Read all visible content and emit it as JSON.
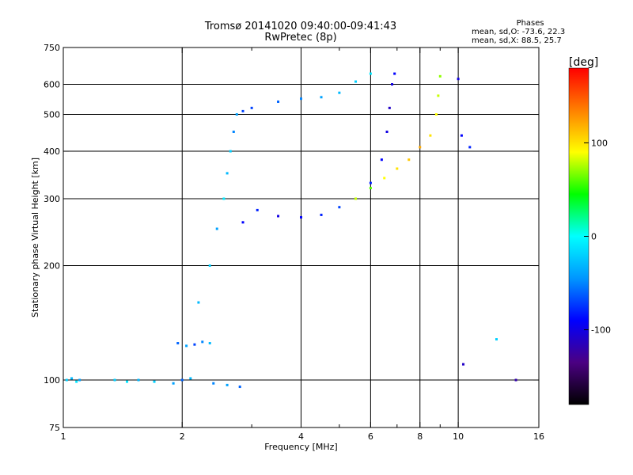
{
  "header": {
    "title_line1": "Tromsø 20141020 09:40:00-09:41:43",
    "title_line2": "RwPretec (8p)"
  },
  "phases": {
    "title": "Phases",
    "line_o": "mean, sd,O: -73.6, 22.3",
    "line_x": "mean, sd,X:  88.5, 25.7"
  },
  "chart_data": {
    "type": "scatter",
    "title": "Tromsø 20141020 09:40:00-09:41:43",
    "subtitle": "RwPretec (8p)",
    "xlabel": "Frequency [MHz]",
    "ylabel": "Stationary phase Virtual Height [km]",
    "x_scale": "log",
    "y_scale": "log",
    "xlim": [
      1,
      16
    ],
    "ylim": [
      75,
      750
    ],
    "x_ticks": [
      1,
      2,
      4,
      6,
      8,
      10,
      16
    ],
    "x_minor_ticks": [
      3,
      5,
      7,
      9
    ],
    "y_ticks": [
      75,
      100,
      200,
      300,
      400,
      500,
      600,
      750
    ],
    "grid_x": [
      2,
      4,
      6,
      8,
      10
    ],
    "grid_y": [
      100,
      200,
      300,
      400,
      500,
      600
    ],
    "colorbar": {
      "label": "[deg]",
      "min": -180,
      "max": 180,
      "ticks": [
        100,
        0,
        -100
      ],
      "colors": [
        "#000000",
        "#4b0082",
        "#0000ff",
        "#0096ff",
        "#00ffff",
        "#00ff00",
        "#ffff00",
        "#ff8000",
        "#ff0000"
      ]
    },
    "traces": [
      {
        "name": "",
        "points": [
          [
            1.02,
            100,
            -20
          ],
          [
            1.05,
            101,
            -30
          ],
          [
            1.08,
            99,
            -10
          ],
          [
            1.1,
            100,
            -40
          ],
          [
            1.35,
            100,
            -20
          ],
          [
            1.45,
            99,
            -10
          ],
          [
            1.55,
            100,
            -30
          ],
          [
            1.7,
            99,
            -20
          ],
          [
            1.9,
            98,
            -40
          ],
          [
            2.0,
            100,
            -60
          ],
          [
            2.1,
            101,
            -30
          ],
          [
            2.4,
            98,
            -50
          ],
          [
            2.6,
            97,
            -40
          ],
          [
            2.8,
            96,
            -60
          ]
        ]
      },
      {
        "name": "",
        "points": [
          [
            1.95,
            125,
            -60
          ],
          [
            2.05,
            123,
            -40
          ],
          [
            2.15,
            124,
            -70
          ],
          [
            2.25,
            126,
            -50
          ],
          [
            2.35,
            125,
            -30
          ]
        ]
      },
      {
        "name": "",
        "points": [
          [
            2.2,
            160,
            -30
          ],
          [
            2.35,
            200,
            -20
          ],
          [
            2.45,
            250,
            -40
          ],
          [
            2.55,
            300,
            -10
          ],
          [
            2.6,
            350,
            -30
          ],
          [
            2.65,
            400,
            -20
          ],
          [
            2.7,
            450,
            -50
          ],
          [
            2.75,
            500,
            -40
          ],
          [
            2.85,
            510,
            -70
          ]
        ]
      },
      {
        "name": "",
        "points": [
          [
            2.85,
            260,
            -90
          ],
          [
            3.1,
            280,
            -80
          ],
          [
            3.5,
            270,
            -100
          ],
          [
            4.0,
            268,
            -90
          ],
          [
            4.5,
            272,
            -80
          ],
          [
            5.0,
            285,
            -70
          ],
          [
            5.5,
            300,
            -60
          ],
          [
            6.0,
            330,
            -80
          ],
          [
            6.4,
            380,
            -90
          ],
          [
            6.6,
            450,
            -100
          ],
          [
            6.7,
            520,
            -110
          ],
          [
            6.8,
            600,
            -100
          ],
          [
            6.9,
            640,
            -90
          ]
        ]
      },
      {
        "name": "",
        "points": [
          [
            3.0,
            520,
            -70
          ],
          [
            3.5,
            540,
            -60
          ],
          [
            4.0,
            550,
            -50
          ],
          [
            4.5,
            555,
            -40
          ],
          [
            5.0,
            570,
            -30
          ],
          [
            5.5,
            610,
            -20
          ],
          [
            6.0,
            640,
            -10
          ]
        ]
      },
      {
        "name": "",
        "points": [
          [
            5.5,
            300,
            80
          ],
          [
            6.0,
            320,
            60
          ],
          [
            6.5,
            340,
            90
          ],
          [
            7.0,
            360,
            100
          ],
          [
            7.5,
            380,
            110
          ],
          [
            8.0,
            410,
            120
          ],
          [
            8.5,
            440,
            100
          ],
          [
            8.8,
            500,
            90
          ],
          [
            8.9,
            560,
            80
          ],
          [
            9.0,
            630,
            70
          ]
        ]
      },
      {
        "name": "",
        "points": [
          [
            10.0,
            620,
            -100
          ],
          [
            10.2,
            440,
            -90
          ],
          [
            10.7,
            410,
            -80
          ],
          [
            10.3,
            110,
            -110
          ],
          [
            12.5,
            128,
            -20
          ],
          [
            14.0,
            100,
            -120
          ]
        ]
      }
    ]
  }
}
